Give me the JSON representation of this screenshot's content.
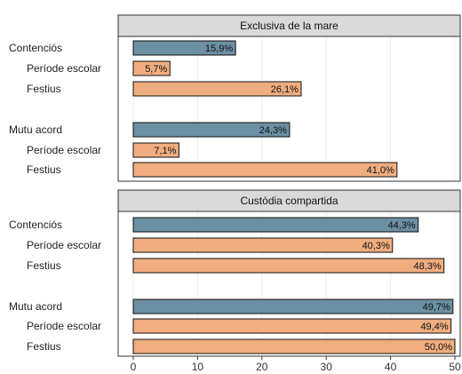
{
  "chart_data": {
    "type": "bar",
    "orientation": "horizontal",
    "xlim": [
      0,
      50
    ],
    "x_ticks": [
      "0",
      "10",
      "20",
      "30",
      "40",
      "50"
    ],
    "grid": true,
    "colors": {
      "group": "#6b8fa3",
      "sub": "#f0ad7f",
      "strip": "#d9d9d9"
    },
    "panels": [
      {
        "title": "Exclusiva de la mare",
        "rows": [
          {
            "label": "Contenciós",
            "value": 15.9,
            "value_label": "15,9%",
            "kind": "group"
          },
          {
            "label": "Període escolar",
            "value": 5.7,
            "value_label": "5,7%",
            "kind": "sub"
          },
          {
            "label": "Festius",
            "value": 26.1,
            "value_label": "26,1%",
            "kind": "sub"
          },
          {
            "label": "Mutu acord",
            "value": 24.3,
            "value_label": "24,3%",
            "kind": "group"
          },
          {
            "label": "Període escolar",
            "value": 7.1,
            "value_label": "7,1%",
            "kind": "sub"
          },
          {
            "label": "Festius",
            "value": 41.0,
            "value_label": "41,0%",
            "kind": "sub"
          }
        ]
      },
      {
        "title": "Custòdia compartida",
        "rows": [
          {
            "label": "Contenciós",
            "value": 44.3,
            "value_label": "44,3%",
            "kind": "group"
          },
          {
            "label": "Període escolar",
            "value": 40.3,
            "value_label": "40,3%",
            "kind": "sub"
          },
          {
            "label": "Festius",
            "value": 48.3,
            "value_label": "48,3%",
            "kind": "sub"
          },
          {
            "label": "Mutu acord",
            "value": 49.7,
            "value_label": "49,7%",
            "kind": "group"
          },
          {
            "label": "Període escolar",
            "value": 49.4,
            "value_label": "49,4%",
            "kind": "sub"
          },
          {
            "label": "Festius",
            "value": 50.0,
            "value_label": "50,0%",
            "kind": "sub"
          }
        ]
      }
    ]
  }
}
